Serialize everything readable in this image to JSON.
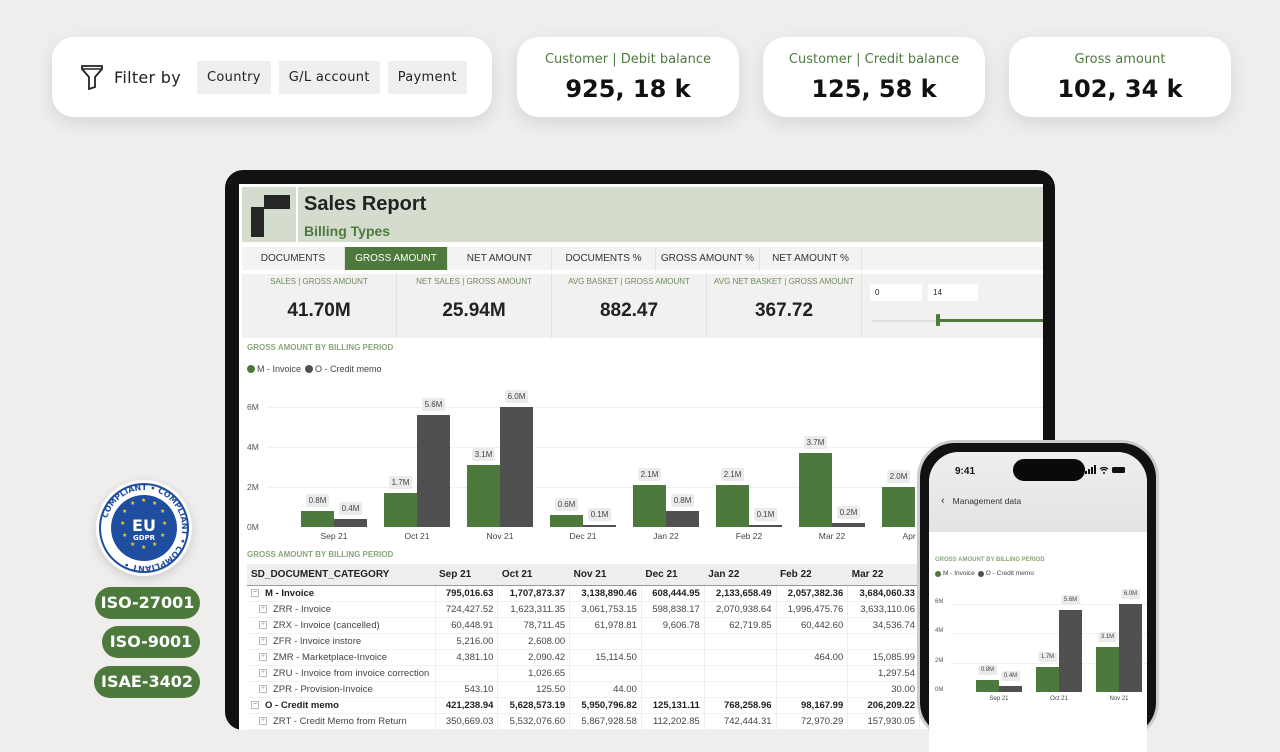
{
  "filter": {
    "label": "Filter by",
    "chips": [
      "Country",
      "G/L account",
      "Payment"
    ]
  },
  "kpi_cards": [
    {
      "label": "Customer | Debit balance",
      "value": "925, 18 k"
    },
    {
      "label": "Customer | Credit balance",
      "value": "125, 58 k"
    },
    {
      "label": "Gross amount",
      "value": "102, 34 k"
    }
  ],
  "report": {
    "title": "Sales Report",
    "subtitle": "Billing Types",
    "tabs": [
      "DOCUMENTS",
      "GROSS AMOUNT",
      "NET AMOUNT",
      "DOCUMENTS %",
      "GROSS AMOUNT %",
      "NET AMOUNT %"
    ],
    "active_tab": "GROSS AMOUNT",
    "kpis": [
      {
        "label": "SALES | GROSS AMOUNT",
        "value": "41.70M"
      },
      {
        "label": "NET SALES | GROSS AMOUNT",
        "value": "25.94M"
      },
      {
        "label": "AVG BASKET | GROSS AMOUNT",
        "value": "882.47"
      },
      {
        "label": "AVG NET BASKET | GROSS AMOUNT",
        "value": "367.72"
      }
    ],
    "slider": {
      "min": "0",
      "max": "14"
    },
    "chart_title": "GROSS AMOUNT BY BILLING PERIOD",
    "legend": [
      "M - Invoice",
      "O - Credit memo"
    ],
    "table_title": "GROSS AMOUNT BY BILLING PERIOD",
    "table": {
      "headers": [
        "SD_DOCUMENT_CATEGORY",
        "Sep 21",
        "Oct 21",
        "Nov 21",
        "Dec 21",
        "Jan 22",
        "Feb 22",
        "Mar 22",
        "A"
      ],
      "rows": [
        {
          "group": true,
          "label": "M - Invoice",
          "values": [
            "795,016.63",
            "1,707,873.37",
            "3,138,890.46",
            "608,444.95",
            "2,133,658.49",
            "2,057,382.36",
            "3,684,060.33",
            "1"
          ]
        },
        {
          "group": false,
          "label": "ZRR - Invoice",
          "values": [
            "724,427.52",
            "1,623,311.35",
            "3,061,753.15",
            "598,838.17",
            "2,070,938.64",
            "1,996,475.76",
            "3,633,110.06",
            ""
          ]
        },
        {
          "group": false,
          "label": "ZRX - Invoice (cancelled)",
          "values": [
            "60,448.91",
            "78,711.45",
            "61,978.81",
            "9,606.78",
            "62,719.85",
            "60,442.60",
            "34,536.74",
            ""
          ]
        },
        {
          "group": false,
          "label": "ZFR - Invoice instore",
          "values": [
            "5,216.00",
            "2,608.00",
            "",
            "",
            "",
            "",
            "",
            ""
          ]
        },
        {
          "group": false,
          "label": "ZMR - Marketplace-Invoice",
          "values": [
            "4,381.10",
            "2,090.42",
            "15,114.50",
            "",
            "",
            "464.00",
            "15,085.99",
            ""
          ]
        },
        {
          "group": false,
          "label": "ZRU - Invoice from invoice correction",
          "values": [
            "",
            "1,026.65",
            "",
            "",
            "",
            "",
            "1,297.54",
            ""
          ]
        },
        {
          "group": false,
          "label": "ZPR - Provision-Invoice",
          "values": [
            "543.10",
            "125.50",
            "44.00",
            "",
            "",
            "",
            "30.00",
            ""
          ]
        },
        {
          "group": true,
          "label": "O - Credit memo",
          "values": [
            "421,238.94",
            "5,628,573.19",
            "5,950,796.82",
            "125,131.11",
            "768,258.96",
            "98,167.99",
            "206,209.22",
            ""
          ]
        },
        {
          "group": false,
          "label": "ZRT - Credit Memo from Return",
          "values": [
            "350,669.03",
            "5,532,076.60",
            "5,867,928.58",
            "112,202.85",
            "742,444.31",
            "72,970.29",
            "157,930.05",
            ""
          ]
        }
      ]
    }
  },
  "phone": {
    "time": "9:41",
    "status_icons": "signal wifi battery",
    "nav_title": "Management data",
    "chart_title": "GROSS AMOUNT BY BILLING PERIOD",
    "legend": [
      "M - Invoice",
      "O - Credit memo"
    ]
  },
  "compliance": {
    "gdpr": {
      "ring": "COMPLIANT",
      "main": "EU",
      "sub": "GDPR"
    },
    "badges": [
      "ISO-27001",
      "ISO-9001",
      "ISAE-3402"
    ]
  },
  "colors": {
    "accent": "#4d7a3c",
    "credit": "#505050",
    "header_bg": "#d3dccd",
    "gdpr_blue": "#1f4ea1"
  },
  "chart_data": [
    {
      "type": "bar",
      "title": "GROSS AMOUNT BY BILLING PERIOD",
      "categories": [
        "Sep 21",
        "Oct 21",
        "Nov 21",
        "Dec 21",
        "Jan 22",
        "Feb 22",
        "Mar 22",
        "Apr 22"
      ],
      "series": [
        {
          "name": "M - Invoice",
          "values": [
            0.8,
            1.7,
            3.1,
            0.6,
            2.1,
            2.1,
            3.7,
            2.0
          ]
        },
        {
          "name": "O - Credit memo",
          "values": [
            0.4,
            5.6,
            6.0,
            0.1,
            0.8,
            0.1,
            0.2,
            null
          ]
        }
      ],
      "yticks": [
        "0M",
        "2M",
        "4M",
        "6M"
      ],
      "ylim": [
        0,
        7
      ],
      "units": "M",
      "legend_position": "top-left"
    },
    {
      "type": "bar",
      "title": "GROSS AMOUNT BY BILLING PERIOD (mobile)",
      "categories": [
        "Sep 21",
        "Oct 21",
        "Nov 21"
      ],
      "series": [
        {
          "name": "M - Invoice",
          "values": [
            0.8,
            1.7,
            3.1
          ]
        },
        {
          "name": "O - Credit memo",
          "values": [
            0.4,
            5.6,
            6.0
          ]
        }
      ],
      "yticks": [
        "0M",
        "2M",
        "4M",
        "6M"
      ],
      "ylim": [
        0,
        7
      ]
    }
  ]
}
